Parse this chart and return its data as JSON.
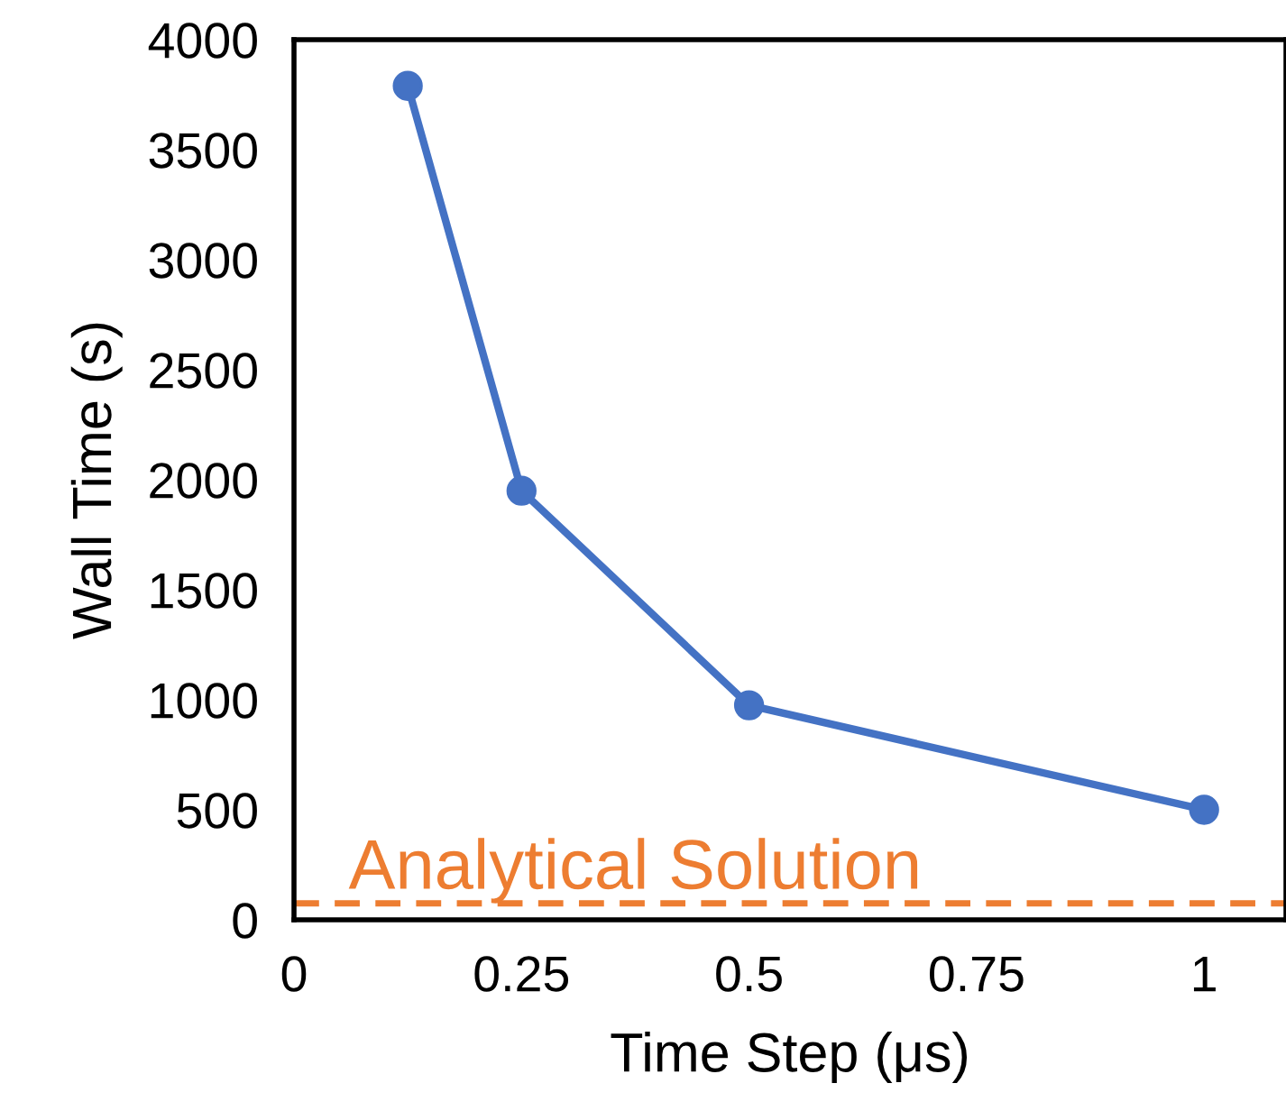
{
  "chart_data": {
    "type": "line",
    "xlabel": "Time Step (μs)",
    "ylabel": "Wall Time (s)",
    "x": [
      0.125,
      0.25,
      0.5,
      1
    ],
    "series": [
      {
        "color": "#4472c4",
        "values": [
          3790,
          1950,
          975,
          500
        ]
      }
    ],
    "xlim": [
      0,
      1.09
    ],
    "xticks": [
      0,
      0.25,
      0.5,
      0.75,
      1
    ],
    "ylim": [
      0,
      4000
    ],
    "yticks": [
      0,
      500,
      1000,
      1500,
      2000,
      2500,
      3000,
      3500,
      4000
    ],
    "marker": "circle",
    "line_style": "solid",
    "grid": false,
    "legend": false,
    "ref_lines": [
      {
        "axis": "y",
        "value": 75,
        "label": "Analytical Solution",
        "color": "#ed7d31",
        "line_style": "dashed"
      }
    ]
  }
}
